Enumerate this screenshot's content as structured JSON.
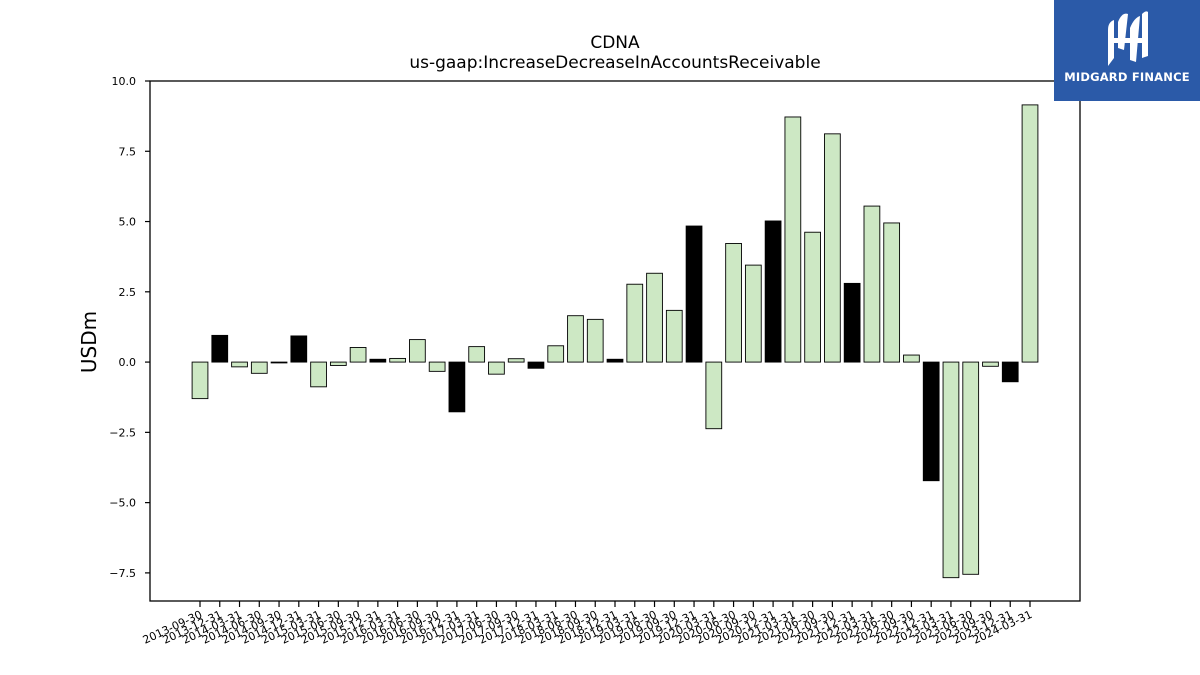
{
  "chart_data": {
    "type": "bar",
    "title": "CDNA",
    "subtitle": "us-gaap:IncreaseDecreaseInAccountsReceivable",
    "xlabel": "",
    "ylabel": "USDm",
    "ylim": [
      -8.5,
      10.0
    ],
    "yticks": [
      -7.5,
      -5.0,
      -2.5,
      0.0,
      2.5,
      5.0,
      7.5,
      10.0
    ],
    "ytick_labels": [
      "−7.5",
      "−5.0",
      "−2.5",
      "0.0",
      "2.5",
      "5.0",
      "7.5",
      "10.0"
    ],
    "categories": [
      "2013-09-30",
      "2013-12-31",
      "2014-03-31",
      "2014-06-30",
      "2014-09-30",
      "2014-12-31",
      "2015-03-31",
      "2015-06-30",
      "2015-09-30",
      "2015-12-31",
      "2016-03-31",
      "2016-06-30",
      "2016-09-30",
      "2016-12-31",
      "2017-03-31",
      "2017-06-30",
      "2017-09-30",
      "2017-12-31",
      "2018-03-31",
      "2018-06-30",
      "2018-09-30",
      "2018-12-31",
      "2019-03-31",
      "2019-06-30",
      "2019-09-30",
      "2019-12-31",
      "2020-03-31",
      "2020-06-30",
      "2020-09-30",
      "2020-12-31",
      "2021-03-31",
      "2021-06-30",
      "2021-09-30",
      "2021-12-31",
      "2022-03-31",
      "2022-06-30",
      "2022-09-30",
      "2022-12-31",
      "2023-03-31",
      "2023-06-30",
      "2023-09-30",
      "2023-12-31",
      "2024-03-31"
    ],
    "values": [
      -1.3,
      0.95,
      -0.17,
      -0.4,
      -0.03,
      0.93,
      -0.88,
      -0.12,
      0.52,
      0.1,
      0.13,
      0.8,
      -0.33,
      -1.77,
      0.55,
      -0.43,
      0.12,
      -0.22,
      0.58,
      1.65,
      1.52,
      0.1,
      2.77,
      3.16,
      1.84,
      4.84,
      -2.37,
      4.22,
      3.45,
      5.02,
      8.72,
      4.62,
      8.12,
      2.8,
      5.55,
      4.95,
      0.25,
      -4.22,
      -7.67,
      -7.55,
      -0.15,
      -0.7,
      9.15
    ],
    "highlight": [
      false,
      true,
      false,
      false,
      false,
      true,
      false,
      false,
      false,
      true,
      false,
      false,
      false,
      true,
      false,
      false,
      false,
      true,
      false,
      false,
      false,
      true,
      false,
      false,
      false,
      true,
      false,
      false,
      false,
      true,
      false,
      false,
      false,
      true,
      false,
      false,
      false,
      true,
      false,
      false,
      false,
      true,
      false
    ],
    "colors": {
      "normal": "#cde8c4",
      "highlight": "#000000",
      "edge": "#000000"
    },
    "grid": false,
    "legend": "none"
  },
  "logo": {
    "text": "MIDGARD FINANCE",
    "background": "#2b5aa8"
  }
}
